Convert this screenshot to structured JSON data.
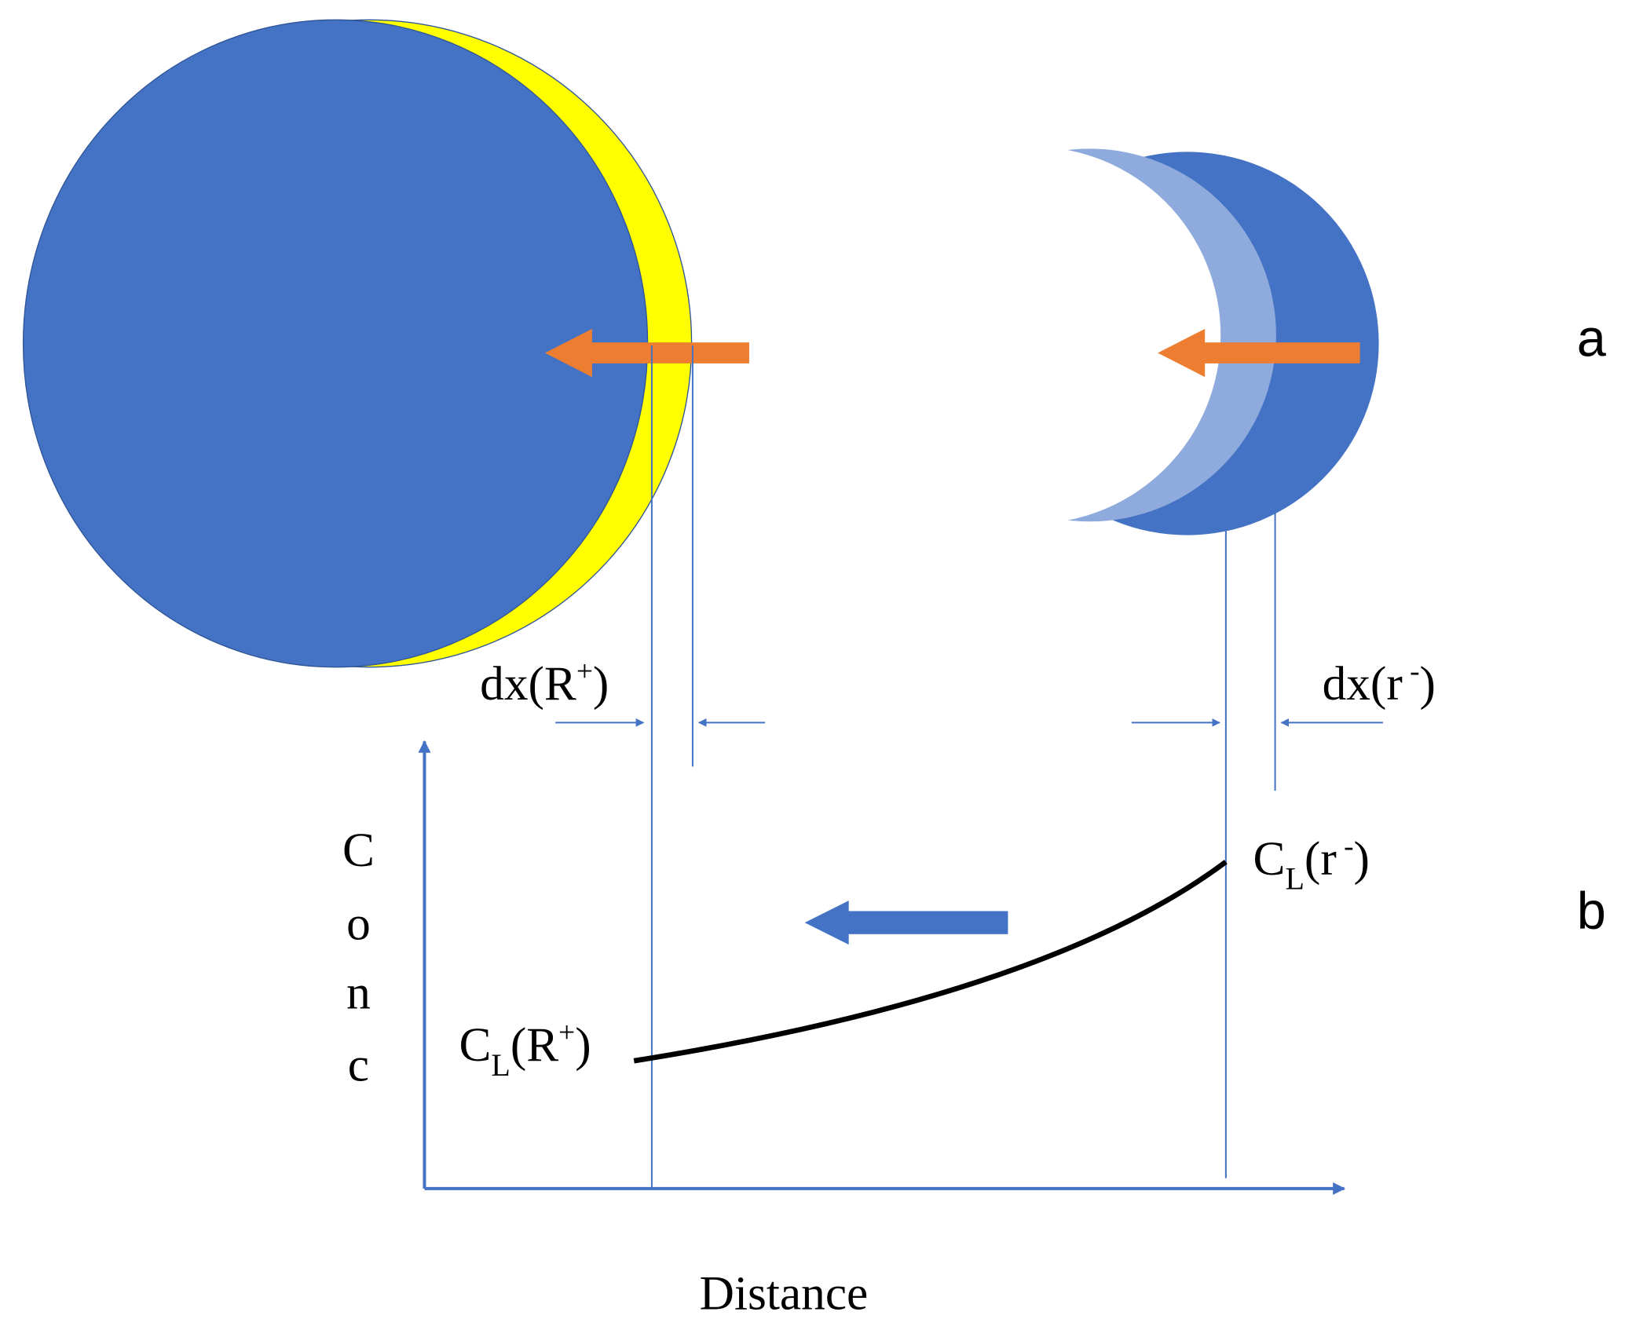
{
  "panel_labels": {
    "a": "a",
    "b": "b"
  },
  "dimension_labels": {
    "dx_R_plus": {
      "text": "dx(R",
      "sup": "+",
      "close": ")"
    },
    "dx_r_minus": {
      "text": "dx(r",
      "sup": " -",
      "close": ")"
    }
  },
  "curve_labels": {
    "CL_r_minus": {
      "main": "C",
      "sub": "L",
      "text": "(r",
      "sup": " -",
      "close": ")"
    },
    "CL_R_plus": {
      "main": "C",
      "sub": "L",
      "text": "(R",
      "sup": "+",
      "close": ")"
    }
  },
  "axes": {
    "y_label_letters": [
      "C",
      "o",
      "n",
      "c"
    ],
    "x_label": "Distance"
  }
}
